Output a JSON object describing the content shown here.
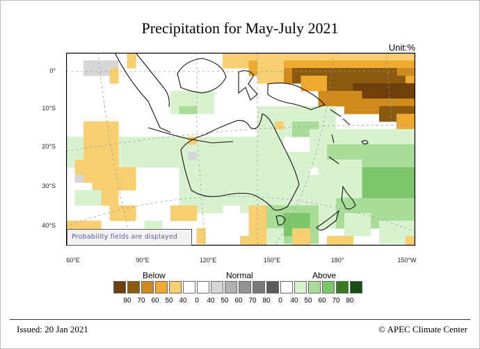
{
  "title": "Precipitation for May-July 2021",
  "unit": "Unit:%",
  "map": {
    "lon_labels": [
      "60°E",
      "90°E",
      "120°E",
      "150°E",
      "180°",
      "150°W"
    ],
    "lat_labels": [
      "0°",
      "10°S",
      "20°S",
      "30°S",
      "40°S"
    ],
    "note": "Probability fields are displayed",
    "category_colors": {
      "b80": "#6e3f0c",
      "b70": "#8a5a10",
      "b60": "#d08a1c",
      "b50": "#eeaa30",
      "b40": "#f7cf70",
      "n40": "#d6d6d6",
      "n50": "#b5b5b5",
      "a40": "#d8f2cf",
      "a50": "#a8dc98",
      "a60": "#7cc56a",
      "a70": "#3a7a22",
      "a80": "#154d14"
    }
  },
  "legend": {
    "groups": [
      {
        "label": "Below",
        "ticks": [
          "80",
          "70",
          "60",
          "50",
          "40",
          "0"
        ],
        "colors": [
          "#6e3f0c",
          "#8a5a10",
          "#d08a1c",
          "#eeaa30",
          "#f7cf70",
          "#ffffff"
        ]
      },
      {
        "label": "Normal",
        "ticks": [
          "40",
          "50",
          "60",
          "70",
          "80",
          "0"
        ],
        "colors": [
          "#ffffff",
          "#d6d6d6",
          "#b0b0b0",
          "#939393",
          "#7a7a7a",
          "#5a5a5a"
        ]
      },
      {
        "label": "Above",
        "ticks": [
          "40",
          "50",
          "60",
          "70",
          "80"
        ],
        "colors": [
          "#ffffff",
          "#d8f2cf",
          "#a8dc98",
          "#7cc56a",
          "#3a7a22",
          "#154d14"
        ]
      }
    ]
  },
  "footer": {
    "issued": "Issued: 20 Jan 2021",
    "copyright": "© APEC Climate Center"
  }
}
